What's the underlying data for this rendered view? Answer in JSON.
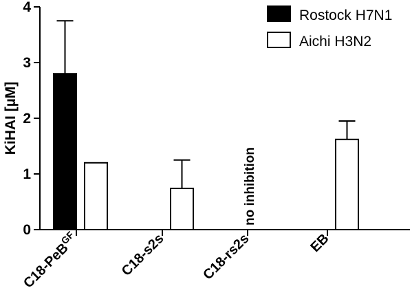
{
  "chart_data": {
    "type": "bar",
    "ylabel": "KiHAI [µM]",
    "ylim": [
      0,
      4
    ],
    "yticks": [
      "0",
      "1",
      "2",
      "3",
      "4"
    ],
    "categories": [
      {
        "label": "C18-PeB",
        "sup": "GF"
      },
      {
        "label": "C18-s2s",
        "sup": ""
      },
      {
        "label": "C18-rs2s",
        "sup": ""
      },
      {
        "label": "EB",
        "sup": ""
      }
    ],
    "series": [
      {
        "name": "Rostock H7N1",
        "fill": "#000000",
        "values": [
          2.8,
          null,
          null,
          null
        ],
        "errors": [
          0.95,
          null,
          null,
          null
        ]
      },
      {
        "name": "Aichi H3N2",
        "fill": "#ffffff",
        "values": [
          1.2,
          0.74,
          null,
          1.62
        ],
        "errors": [
          0,
          0.51,
          null,
          0.33
        ]
      }
    ],
    "annotations": [
      {
        "text": "no inhibition",
        "category": 2
      }
    ],
    "legend_position": "top-right",
    "grid": false
  }
}
